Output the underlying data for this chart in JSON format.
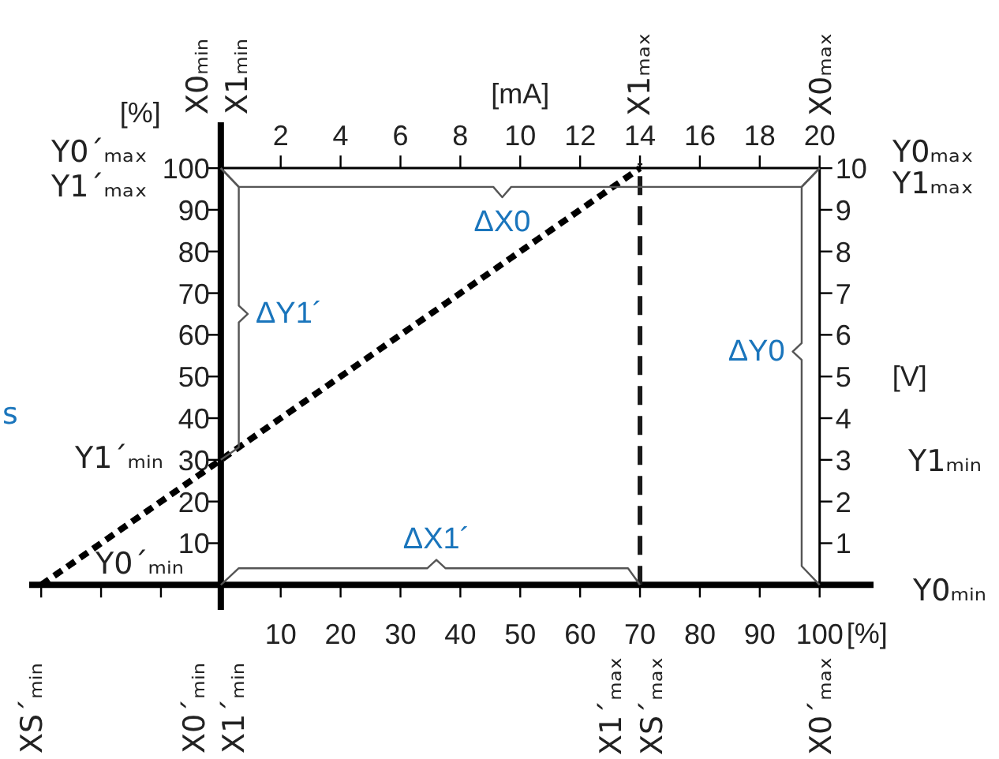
{
  "chart_data": {
    "type": "line",
    "xlabel": "[%]",
    "ylabel": "[%]",
    "x2label": "[mA]",
    "y2label": "[V]",
    "xlim": [
      -32,
      109
    ],
    "ylim": [
      -6,
      111
    ],
    "x2lim": [
      0,
      20
    ],
    "y2lim": [
      0,
      10
    ],
    "xticks": [
      {
        "value": -30,
        "label": null
      },
      {
        "value": -20,
        "label": null
      },
      {
        "value": -10,
        "label": null
      },
      10,
      20,
      30,
      40,
      50,
      60,
      70,
      80,
      90,
      100
    ],
    "yticks": [
      10,
      20,
      30,
      40,
      50,
      60,
      70,
      80,
      90,
      100
    ],
    "x2ticks": [
      2,
      4,
      6,
      8,
      10,
      12,
      14,
      16,
      18,
      20
    ],
    "y2ticks": [
      1,
      2,
      3,
      4,
      5,
      6,
      7,
      8,
      9,
      10
    ],
    "series": [
      {
        "color": "#000000",
        "x": [
          -30,
          70
        ],
        "values": [
          0,
          100
        ],
        "line_style": "dashed"
      },
      {
        "color": "#555555",
        "x": [
          0,
          3,
          45.5,
          47,
          48.5,
          97,
          100
        ],
        "values": [
          100,
          95.5,
          95.5,
          93,
          95.5,
          95.5,
          100
        ],
        "line_style": "solid"
      },
      {
        "color": "#555555",
        "x": [
          0,
          3,
          3,
          4.5,
          3,
          3,
          0
        ],
        "values": [
          100,
          95.5,
          67,
          65,
          63,
          33,
          30
        ],
        "line_style": "solid"
      },
      {
        "color": "#555555",
        "x": [
          100,
          97,
          97,
          95.5,
          97,
          97,
          100
        ],
        "values": [
          100,
          95.5,
          58,
          56,
          54,
          4.5,
          0
        ],
        "line_style": "solid"
      },
      {
        "color": "#555555",
        "x": [
          0,
          3,
          34.5,
          36,
          37.5,
          68,
          70
        ],
        "values": [
          0,
          4,
          4,
          6,
          4,
          4,
          0
        ],
        "line_style": "solid"
      }
    ],
    "ref_lines": [
      {
        "axis": "x",
        "value": 70,
        "line_style": "dashed",
        "color": "#1a1a1a"
      }
    ],
    "annotations": [
      {
        "text": "ΔX0",
        "x": 47,
        "y": 93
      },
      {
        "text": "ΔY1´",
        "x": 4.5,
        "y": 65
      },
      {
        "text": "ΔY0",
        "x": 95.5,
        "y": 56
      },
      {
        "text": "ΔX1´",
        "x": 36,
        "y": 6
      },
      "Y0´ₘₐₓ",
      "Y1´ₘₐₓ",
      "Y1´ₘᵢₙ",
      "Y0´ₘᵢₙ",
      "Y0ₘₐₓ",
      "Y1ₘₐₓ",
      "Y1ₘᵢₙ",
      "Y0ₘᵢₙ",
      "X0ₘᵢₙ",
      "X1ₘᵢₙ",
      "X1ₘₐₓ",
      "X0ₘₐₓ",
      "XS´ₘᵢₙ",
      "X0´ₘᵢₙ",
      "X1´ₘᵢₙ",
      "X1´ₘₐₓ",
      "XS´ₘₐₓ",
      "X0´ₘₐₓ",
      "s"
    ]
  }
}
